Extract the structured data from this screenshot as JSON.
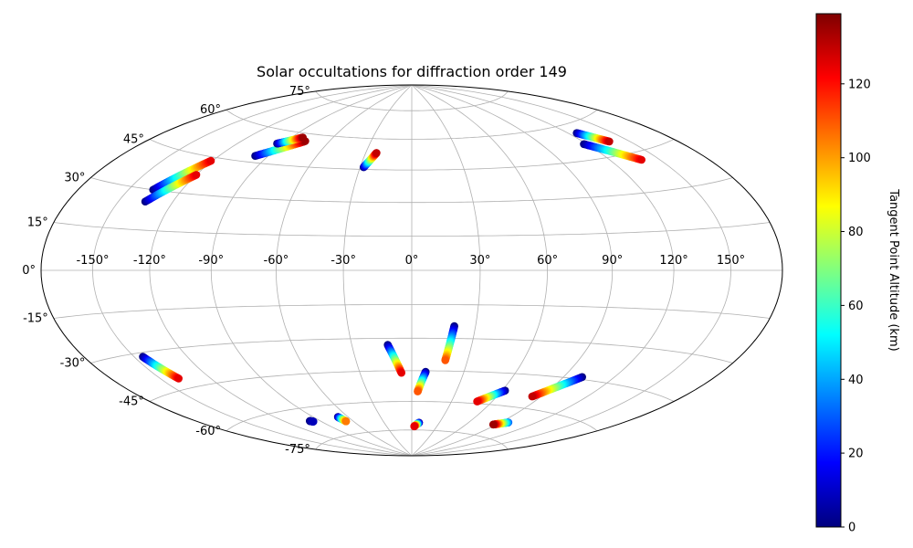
{
  "chart_data": {
    "type": "scatter",
    "projection": "hammer",
    "title": "Solar occultations for diffraction order 149",
    "longitude_ticks": [
      -150,
      -120,
      -90,
      -60,
      -30,
      0,
      30,
      60,
      90,
      120,
      150
    ],
    "longitude_tick_labels": [
      "-150°",
      "-120°",
      "-90°",
      "-60°",
      "-30°",
      "0°",
      "30°",
      "60°",
      "90°",
      "120°",
      "150°"
    ],
    "latitude_ticks": [
      75,
      60,
      45,
      30,
      15,
      0,
      -15,
      -30,
      -45,
      -60,
      -75
    ],
    "latitude_tick_labels": [
      "75°",
      "60°",
      "45°",
      "30°",
      "15°",
      "0°",
      "-15°",
      "-30°",
      "-45°",
      "-60°",
      "-75°"
    ],
    "grid": true,
    "colorbar": {
      "label": "Tangent Point Altitude (km)",
      "range": [
        0,
        139
      ],
      "ticks": [
        0,
        20,
        40,
        60,
        80,
        100,
        120
      ],
      "tick_labels": [
        "0",
        "20",
        "40",
        "60",
        "80",
        "100",
        "120"
      ],
      "colormap": "jet",
      "placement": "right"
    },
    "tracks": [
      {
        "start_lon": -136,
        "start_lat": 30,
        "end_lon": -121,
        "end_lat": 43.5,
        "alt_min": 0,
        "alt_max": 125
      },
      {
        "start_lon": -135,
        "start_lat": 25.5,
        "end_lon": -120,
        "end_lat": 37.5,
        "alt_min": 0,
        "alt_max": 125
      },
      {
        "start_lon": -98,
        "start_lat": 47.8,
        "end_lon": -77,
        "end_lat": 56.5,
        "alt_min": 0,
        "alt_max": 135
      },
      {
        "start_lon": -94,
        "start_lat": 54,
        "end_lon": -82,
        "end_lat": 58,
        "alt_min": 0,
        "alt_max": 135
      },
      {
        "start_lon": -28,
        "start_lat": 46,
        "end_lon": -23,
        "end_lat": 53,
        "alt_min": 0,
        "alt_max": 130
      },
      {
        "start_lon": 118,
        "start_lat": 51.5,
        "end_lon": 139,
        "end_lat": 42,
        "alt_min": 0,
        "alt_max": 125
      },
      {
        "start_lon": 126,
        "start_lat": 56,
        "end_lon": 137,
        "end_lat": 50.5,
        "alt_min": 0,
        "alt_max": 130
      },
      {
        "start_lon": -145,
        "start_lat": -31.5,
        "end_lon": -139,
        "end_lat": -41,
        "alt_min": 0,
        "alt_max": 125
      },
      {
        "start_lon": -99,
        "start_lat": -66,
        "end_lon": -97,
        "end_lat": -66.5,
        "alt_min": 0,
        "alt_max": 8
      },
      {
        "start_lon": -69,
        "start_lat": -66,
        "end_lon": -67,
        "end_lat": -68.5,
        "alt_min": 0,
        "alt_max": 105
      },
      {
        "start_lon": -12,
        "start_lat": -33,
        "end_lon": -6,
        "end_lat": -46,
        "alt_min": 0,
        "alt_max": 125
      },
      {
        "start_lon": 20,
        "start_lat": -24.5,
        "end_lon": 18,
        "end_lat": -40,
        "alt_min": 0,
        "alt_max": 110
      },
      {
        "start_lon": 8,
        "start_lat": -45.5,
        "end_lon": 4,
        "end_lat": -55,
        "alt_min": 0,
        "alt_max": 110
      },
      {
        "start_lon": 8,
        "start_lat": -71,
        "end_lon": 3,
        "end_lat": -73,
        "alt_min": 0,
        "alt_max": 125
      },
      {
        "start_lon": 62,
        "start_lat": -53,
        "end_lon": 49,
        "end_lat": -59,
        "alt_min": 0,
        "alt_max": 125
      },
      {
        "start_lon": 101,
        "start_lat": -44,
        "end_lon": 84,
        "end_lat": -54.5,
        "alt_min": 0,
        "alt_max": 130
      },
      {
        "start_lon": 97,
        "start_lat": -67,
        "end_lon": 87,
        "end_lat": -69,
        "alt_min": 30,
        "alt_max": 135
      }
    ]
  }
}
